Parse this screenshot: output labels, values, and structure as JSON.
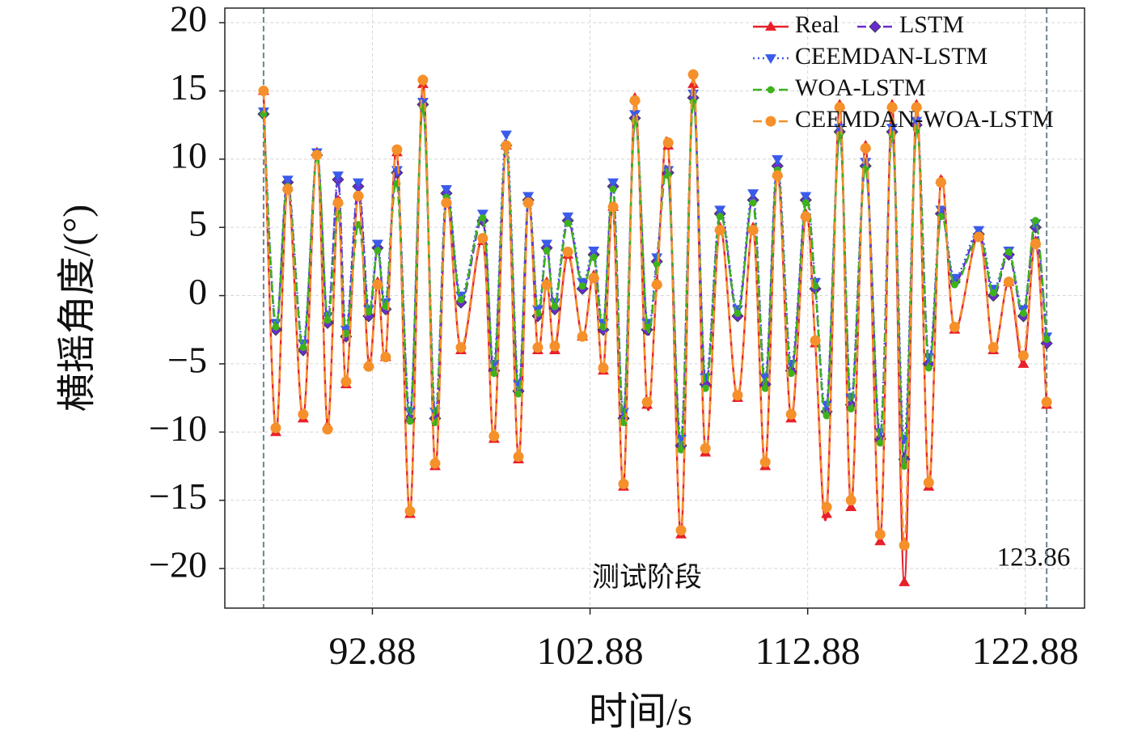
{
  "chart_data": {
    "type": "line",
    "x_label": "时间/s",
    "y_label": "横摇角度/(°)",
    "annotations": [
      "测试阶段",
      "123.86"
    ],
    "vlines": [
      87.88,
      123.86
    ],
    "x": [
      87.88,
      88.44,
      88.99,
      89.7,
      90.33,
      90.82,
      91.3,
      91.67,
      92.23,
      92.71,
      93.12,
      93.49,
      94.01,
      94.61,
      95.2,
      95.76,
      96.28,
      96.95,
      97.95,
      98.47,
      99.03,
      99.59,
      100.04,
      100.48,
      100.89,
      101.26,
      101.86,
      102.53,
      103.05,
      103.49,
      103.94,
      104.42,
      104.94,
      105.5,
      105.95,
      106.47,
      107.06,
      107.62,
      108.18,
      108.85,
      109.66,
      110.37,
      110.93,
      111.49,
      112.12,
      112.79,
      113.23,
      113.75,
      114.35,
      114.87,
      115.54,
      116.21,
      116.76,
      117.32,
      117.88,
      118.44,
      119.0,
      119.63,
      120.74,
      121.41,
      122.12,
      122.79,
      123.35,
      123.86
    ],
    "series": [
      {
        "name": "Real",
        "color": "#e8202a",
        "linestyle": "solid",
        "marker": "triangle-up",
        "values": [
          15,
          -10,
          8,
          -9,
          10.5,
          -9.5,
          7,
          -6.5,
          7.5,
          -5,
          1,
          -4.5,
          10.5,
          -16,
          15.5,
          -12.5,
          7,
          -4,
          4,
          -10.5,
          11,
          -12,
          7,
          -4,
          1,
          -4,
          3,
          -3,
          1.5,
          -5.5,
          6.5,
          -14,
          14.5,
          -8,
          1,
          11,
          -17.5,
          15.5,
          -11.5,
          5,
          -7.5,
          5,
          -12.5,
          9,
          -9,
          6,
          -3.5,
          -16,
          14,
          -15.5,
          11,
          -18,
          14,
          -21,
          14,
          -14,
          8.5,
          -2.5,
          4.5,
          -4,
          1,
          -5,
          4,
          -8
        ]
      },
      {
        "name": "LSTM",
        "color": "#6a2bd0",
        "linestyle": "dashed",
        "marker": "diamond",
        "values": [
          13.3,
          -2.5,
          8.3,
          -4,
          10.3,
          -2,
          8.5,
          -3,
          8,
          -1.5,
          3.5,
          -1,
          9,
          -9,
          14,
          -9,
          7.5,
          -0.5,
          5.5,
          -5.5,
          11,
          -7,
          7,
          -1.5,
          3.5,
          -1,
          5.5,
          0.5,
          3,
          -2.5,
          8,
          -9,
          13,
          -2.5,
          2.5,
          9,
          -11,
          14.5,
          -6.5,
          6,
          -1.5,
          7,
          -6.5,
          9.5,
          -5.5,
          7,
          0.5,
          -8.5,
          12,
          -8,
          9.5,
          -10.5,
          12,
          -12,
          12.5,
          -5,
          6,
          1,
          4.5,
          0,
          3,
          -1.5,
          5,
          -3.5
        ]
      },
      {
        "name": "CEEMDAN-LSTM",
        "color": "#3b5bea",
        "linestyle": "dotted",
        "marker": "triangle-down",
        "values": [
          13.5,
          -2,
          8.5,
          -3.5,
          10.5,
          -1.5,
          8.8,
          -2.5,
          8.3,
          -1,
          3.8,
          -0.5,
          9.2,
          -8.5,
          14.2,
          -8.5,
          7.8,
          0,
          6,
          -5,
          11.8,
          -6.5,
          7.3,
          -1,
          3.8,
          -0.5,
          5.8,
          1,
          3.3,
          -2,
          8.3,
          -8.5,
          13.3,
          -2,
          2.8,
          9.2,
          -10.5,
          14.8,
          -6,
          6.3,
          -1,
          7.5,
          -6,
          10,
          -5,
          7.3,
          1,
          -8,
          12.3,
          -7.5,
          9.8,
          -10,
          12.3,
          -10.5,
          12.8,
          -4.5,
          6.3,
          1.3,
          4.8,
          0.5,
          3.3,
          -1,
          5.3,
          -3
        ]
      },
      {
        "name": "WOA-LSTM",
        "color": "#3cb21d",
        "linestyle": "dashed",
        "marker": "circle-small",
        "values": [
          13.3,
          -2.3,
          8,
          -3.8,
          10.2,
          -1.8,
          6,
          -2.8,
          5.2,
          -1.2,
          3.3,
          -0.8,
          8.2,
          -9.2,
          13.8,
          -9.3,
          7.2,
          -0.3,
          5.7,
          -5.7,
          10.8,
          -7.2,
          6.8,
          -1.3,
          3.3,
          -0.8,
          5.3,
          0.7,
          2.8,
          -2.3,
          7.8,
          -9.3,
          12.8,
          -2.3,
          2.3,
          8.8,
          -11.3,
          14.2,
          -6.8,
          5.8,
          -1.3,
          6.8,
          -6.8,
          9.2,
          -5.7,
          6.8,
          0.7,
          -8.8,
          11.8,
          -8.3,
          9.3,
          -10.8,
          11.8,
          -12.5,
          12.2,
          -5.3,
          5.8,
          0.8,
          4.3,
          0.2,
          3.2,
          -1.3,
          5.5,
          -3.2
        ]
      },
      {
        "name": "CEEMDAN-WOA-LSTM",
        "color": "#f5902a",
        "linestyle": "dashed",
        "marker": "circle",
        "values": [
          15,
          -9.7,
          7.8,
          -8.7,
          10.3,
          -9.8,
          6.8,
          -6.3,
          7.3,
          -5.2,
          0.8,
          -4.5,
          10.7,
          -15.8,
          15.8,
          -12.3,
          6.8,
          -3.8,
          4.2,
          -10.3,
          11,
          -11.8,
          6.8,
          -3.8,
          0.8,
          -3.7,
          3.2,
          -3,
          1.3,
          -5.3,
          6.5,
          -13.8,
          14.3,
          -7.8,
          0.8,
          11.2,
          -17.2,
          16.2,
          -11.2,
          4.8,
          -7.3,
          4.8,
          -12.2,
          8.8,
          -8.7,
          5.8,
          -3.3,
          -15.5,
          13.8,
          -15,
          10.8,
          -17.5,
          13.8,
          -18.3,
          13.8,
          -13.7,
          8.3,
          -2.3,
          4.3,
          -3.8,
          1,
          -4.4,
          3.8,
          -7.8
        ]
      }
    ],
    "xlim": [
      86.1,
      125.6
    ],
    "xticks": [
      92.88,
      102.88,
      112.88,
      122.88
    ],
    "ylim": [
      -22.9,
      21.07
    ],
    "yticks": [
      {
        "value": -20,
        "label": "−20"
      },
      {
        "value": -15,
        "label": "−15"
      },
      {
        "value": -10,
        "label": "−10"
      },
      {
        "value": -5,
        "label": "−5"
      },
      0,
      5,
      10,
      15,
      20
    ],
    "grid": true,
    "legend": "upper right"
  }
}
